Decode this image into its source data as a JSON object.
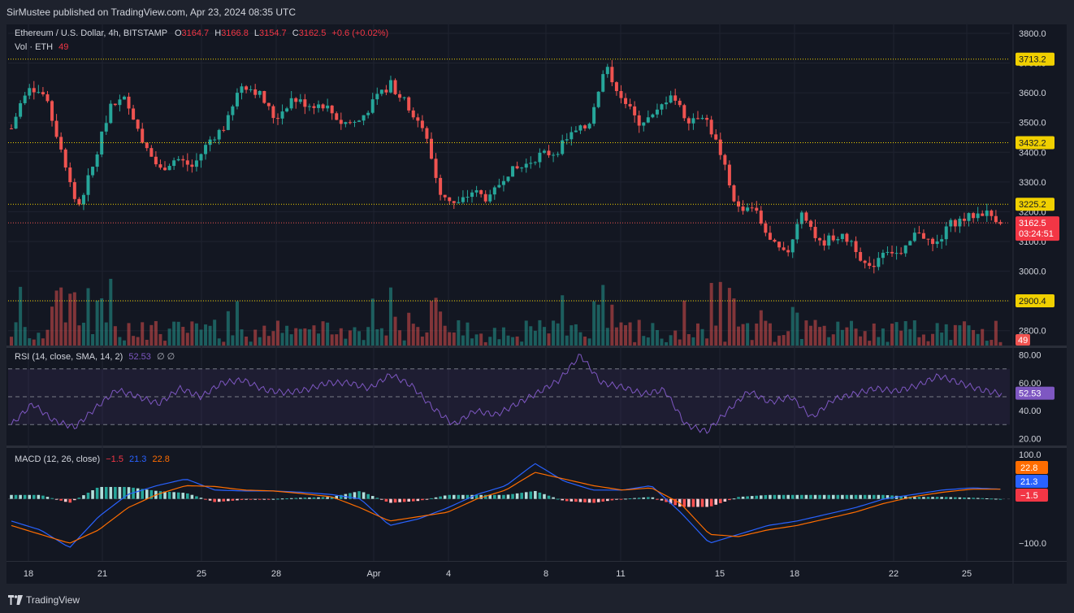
{
  "top_bar": {
    "attribution": "SirMustee published on TradingView.com, Apr 23, 2024 08:35 UTC"
  },
  "legend": {
    "symbol": "Ethereum / U.S. Dollar, 4h, BITSTAMP",
    "open_label": "O",
    "open": "3164.7",
    "high_label": "H",
    "high": "3166.8",
    "low_label": "L",
    "low": "3154.7",
    "close_label": "C",
    "close": "3162.5",
    "change": "+0.6 (+0.02%)",
    "volume_label": "Vol · ETH",
    "volume_value": "49"
  },
  "rsi_legend": {
    "label": "RSI (14, close, SMA, 14, 2)",
    "value": "52.53",
    "extra": "∅ ∅"
  },
  "macd_legend": {
    "label": "MACD (12, 26, close)",
    "hist": "−1.5",
    "macd": "21.3",
    "signal": "22.8"
  },
  "price_axis": [
    "3800.0",
    "3700.0",
    "3600.0",
    "3500.0",
    "3400.0",
    "3300.0",
    "3200.0",
    "3100.0",
    "3000.0",
    "2900.0",
    "2800.0"
  ],
  "horizontal_levels": [
    "3713.2",
    "3432.2",
    "3225.2",
    "2900.4"
  ],
  "last_price": {
    "price": "3162.5",
    "countdown": "03:24:51"
  },
  "volume_badge": "49",
  "rsi_axis": [
    "80.00",
    "60.00",
    "40.00",
    "20.00"
  ],
  "rsi_badge": "52.53",
  "macd_axis": [
    "100.0",
    "−100.0"
  ],
  "macd_badges": {
    "signal": "22.8",
    "macd": "21.3",
    "hist": "−1.5"
  },
  "time_axis": [
    "18",
    "21",
    "25",
    "28",
    "Apr",
    "4",
    "8",
    "11",
    "15",
    "18",
    "22",
    "25"
  ],
  "branding": "TradingView",
  "colors": {
    "up": "#26a69a",
    "down": "#ef5350",
    "level": "#f0d000",
    "rsi": "#7e57c2",
    "macd": "#2962ff",
    "signal": "#ff6d00",
    "bg": "#131722",
    "frame": "#1e222d"
  },
  "chart_data": {
    "type": "candlestick",
    "price_ylim": [
      2750,
      3830
    ],
    "close_path": [
      3480,
      3630,
      3590,
      3420,
      3210,
      3360,
      3560,
      3580,
      3430,
      3340,
      3380,
      3350,
      3440,
      3490,
      3630,
      3600,
      3510,
      3580,
      3560,
      3560,
      3500,
      3500,
      3570,
      3630,
      3560,
      3480,
      3270,
      3220,
      3270,
      3240,
      3330,
      3350,
      3390,
      3400,
      3460,
      3490,
      3690,
      3590,
      3500,
      3520,
      3600,
      3510,
      3530,
      3400,
      3210,
      3220,
      3100,
      3050,
      3210,
      3090,
      3120,
      3100,
      3000,
      3080,
      3050,
      3140,
      3080,
      3160,
      3180,
      3200,
      3170
    ],
    "rsi_ylim": [
      15,
      85
    ],
    "rsi_path": [
      30,
      45,
      33,
      28,
      42,
      55,
      50,
      45,
      56,
      50,
      60,
      62,
      55,
      53,
      55,
      60,
      60,
      56,
      66,
      58,
      42,
      30,
      40,
      37,
      45,
      53,
      62,
      80,
      60,
      57,
      52,
      55,
      30,
      25,
      40,
      54,
      46,
      50,
      35,
      48,
      52,
      56,
      54,
      58,
      65,
      60,
      55,
      52
    ],
    "macd_ylim": [
      -140,
      115
    ],
    "macd_path": [
      -50,
      -70,
      -110,
      -40,
      10,
      30,
      45,
      20,
      18,
      18,
      15,
      10,
      0,
      -60,
      -45,
      -20,
      10,
      30,
      80,
      40,
      20,
      20,
      30,
      -30,
      -100,
      -80,
      -60,
      -50,
      -35,
      -20,
      0,
      10,
      20,
      25,
      22
    ],
    "signal_path": [
      -60,
      -80,
      -100,
      -70,
      -20,
      10,
      30,
      28,
      20,
      18,
      12,
      5,
      -20,
      -50,
      -40,
      -30,
      0,
      20,
      60,
      45,
      30,
      20,
      25,
      -10,
      -80,
      -85,
      -70,
      -60,
      -45,
      -30,
      -10,
      5,
      15,
      22,
      22
    ]
  }
}
